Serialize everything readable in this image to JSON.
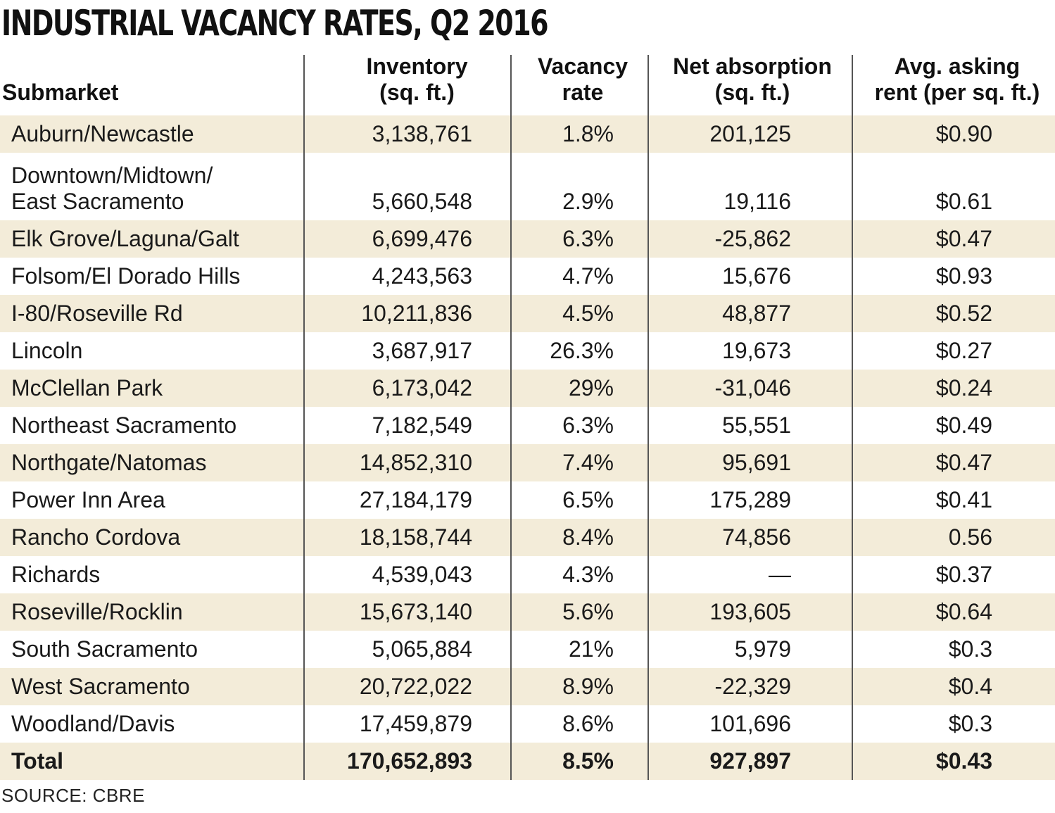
{
  "title": "INDUSTRIAL VACANCY RATES, Q2 2016",
  "headers": {
    "submarket": "Submarket",
    "inventory_l1": "Inventory",
    "inventory_l2": "(sq. ft.)",
    "vacancy_l1": "Vacancy",
    "vacancy_l2": "rate",
    "absorption_l1": "Net absorption",
    "absorption_l2": "(sq. ft.)",
    "rent_l1": "Avg. asking",
    "rent_l2": "rent (per sq. ft.)"
  },
  "rows": [
    {
      "submarket": "Auburn/Newcastle",
      "inventory": "3,138,761",
      "vacancy": "1.8%",
      "absorption": "201,125",
      "rent": "$0.90"
    },
    {
      "submarket": "Downtown/Midtown/\nEast Sacramento",
      "inventory": "5,660,548",
      "vacancy": "2.9%",
      "absorption": "19,116",
      "rent": "$0.61"
    },
    {
      "submarket": "Elk Grove/Laguna/Galt",
      "inventory": "6,699,476",
      "vacancy": "6.3%",
      "absorption": "-25,862",
      "rent": "$0.47"
    },
    {
      "submarket": "Folsom/El Dorado Hills",
      "inventory": "4,243,563",
      "vacancy": "4.7%",
      "absorption": "15,676",
      "rent": "$0.93"
    },
    {
      "submarket": "I-80/Roseville Rd",
      "inventory": "10,211,836",
      "vacancy": "4.5%",
      "absorption": "48,877",
      "rent": "$0.52"
    },
    {
      "submarket": "Lincoln",
      "inventory": "3,687,917",
      "vacancy": "26.3%",
      "absorption": "19,673",
      "rent": "$0.27"
    },
    {
      "submarket": "McClellan Park",
      "inventory": "6,173,042",
      "vacancy": "29%",
      "absorption": "-31,046",
      "rent": "$0.24"
    },
    {
      "submarket": "Northeast Sacramento",
      "inventory": "7,182,549",
      "vacancy": "6.3%",
      "absorption": "55,551",
      "rent": "$0.49"
    },
    {
      "submarket": "Northgate/Natomas",
      "inventory": "14,852,310",
      "vacancy": "7.4%",
      "absorption": "95,691",
      "rent": "$0.47"
    },
    {
      "submarket": "Power Inn Area",
      "inventory": "27,184,179",
      "vacancy": "6.5%",
      "absorption": "175,289",
      "rent": "$0.41"
    },
    {
      "submarket": "Rancho Cordova",
      "inventory": "18,158,744",
      "vacancy": "8.4%",
      "absorption": "74,856",
      "rent": "0.56"
    },
    {
      "submarket": "Richards",
      "inventory": "4,539,043",
      "vacancy": "4.3%",
      "absorption": "—",
      "rent": "$0.37"
    },
    {
      "submarket": "Roseville/Rocklin",
      "inventory": "15,673,140",
      "vacancy": "5.6%",
      "absorption": "193,605",
      "rent": "$0.64"
    },
    {
      "submarket": "South Sacramento",
      "inventory": "5,065,884",
      "vacancy": "21%",
      "absorption": "5,979",
      "rent": "$0.3"
    },
    {
      "submarket": "West Sacramento",
      "inventory": "20,722,022",
      "vacancy": "8.9%",
      "absorption": "-22,329",
      "rent": "$0.4"
    },
    {
      "submarket": "Woodland/Davis",
      "inventory": "17,459,879",
      "vacancy": "8.6%",
      "absorption": "101,696",
      "rent": "$0.3"
    },
    {
      "submarket": "Total",
      "inventory": "170,652,893",
      "vacancy": "8.5%",
      "absorption": "927,897",
      "rent": "$0.43"
    }
  ],
  "source": "SOURCE: CBRE",
  "colors": {
    "shade": "#f3ecd9",
    "text": "#1a1a1a",
    "divider": "#555555"
  },
  "chart_data": {
    "type": "table",
    "title": "INDUSTRIAL VACANCY RATES, Q2 2016",
    "columns": [
      "Submarket",
      "Inventory (sq. ft.)",
      "Vacancy rate",
      "Net absorption (sq. ft.)",
      "Avg. asking rent (per sq. ft.)"
    ],
    "source": "SOURCE: CBRE"
  }
}
